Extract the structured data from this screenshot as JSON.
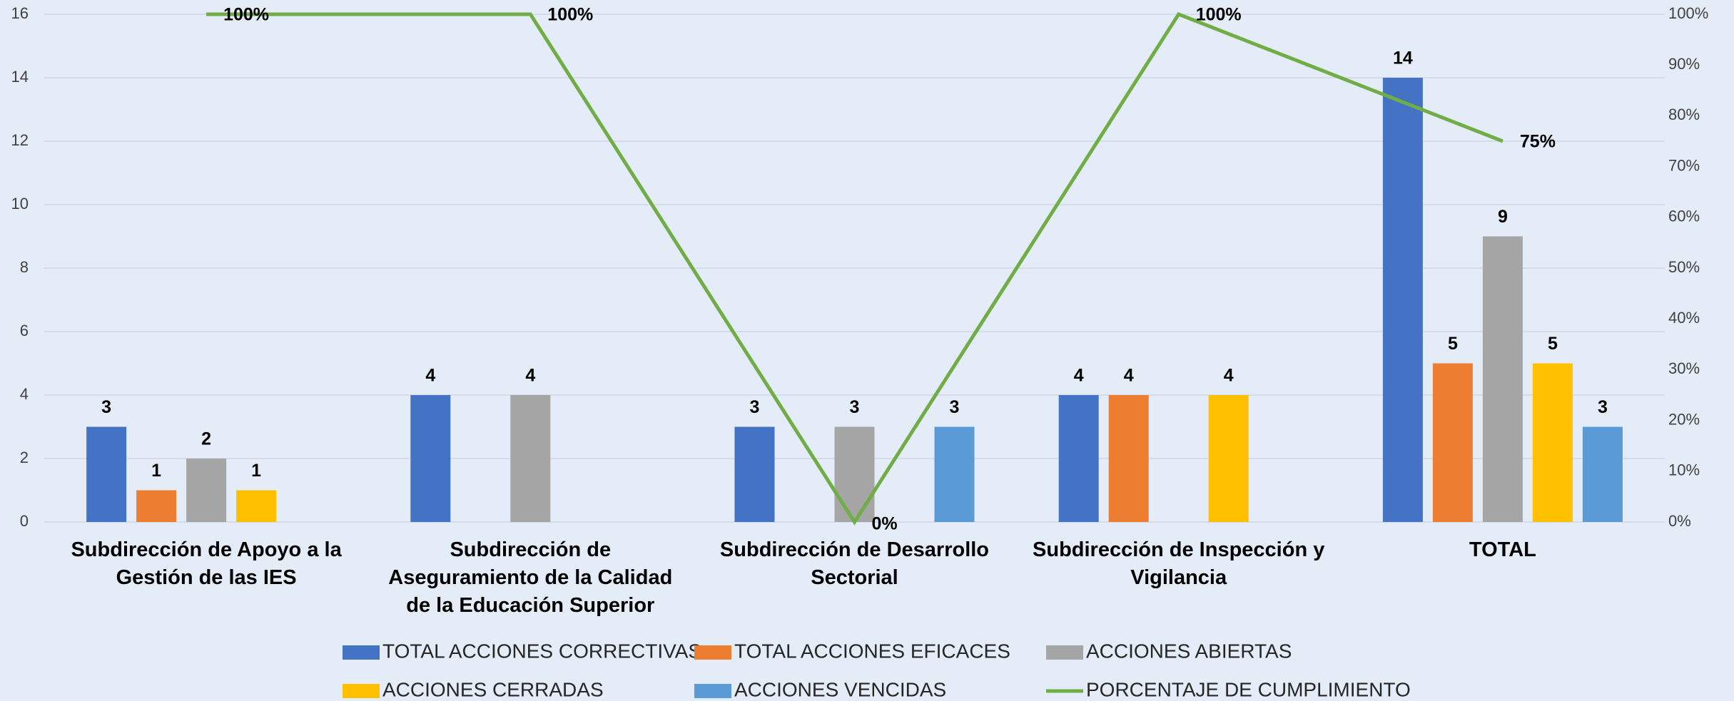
{
  "chart_data": {
    "type": "bar",
    "categories": [
      "Subdirección de Apoyo a la Gestión de las IES",
      "Subdirección de Aseguramiento de la Calidad de la Educación Superior",
      "Subdirección de Desarrollo Sectorial",
      "Subdirección de Inspección y Vigilancia",
      "TOTAL"
    ],
    "series": [
      {
        "name": "TOTAL ACCIONES CORRECTIVAS",
        "color": "#4472c4",
        "values": [
          3,
          4,
          3,
          4,
          14
        ]
      },
      {
        "name": "TOTAL ACCIONES EFICACES",
        "color": "#ed7d31",
        "values": [
          1,
          null,
          null,
          4,
          5
        ]
      },
      {
        "name": "ACCIONES ABIERTAS",
        "color": "#a5a5a5",
        "values": [
          2,
          4,
          3,
          null,
          9
        ]
      },
      {
        "name": "ACCIONES CERRADAS",
        "color": "#ffc000",
        "values": [
          1,
          null,
          null,
          4,
          5
        ]
      },
      {
        "name": "ACCIONES VENCIDAS",
        "color": "#5b9bd5",
        "values": [
          null,
          null,
          3,
          null,
          3
        ]
      },
      {
        "name": "PORCENTAJE DE CUMPLIMIENTO",
        "color": "#70ad47",
        "type": "line",
        "axis": "y2",
        "values": [
          100,
          100,
          0,
          100,
          75
        ],
        "value_labels": [
          "100%",
          "100%",
          "0%",
          "100%",
          "75%"
        ]
      }
    ],
    "ylim": [
      0,
      16
    ],
    "yticks": [
      0,
      2,
      4,
      6,
      8,
      10,
      12,
      14,
      16
    ],
    "y2lim": [
      0,
      100
    ],
    "y2ticks": [
      {
        "value": 0,
        "label": "0%"
      },
      {
        "value": 10,
        "label": "10%"
      },
      {
        "value": 20,
        "label": "20%"
      },
      {
        "value": 30,
        "label": "30%"
      },
      {
        "value": 40,
        "label": "40%"
      },
      {
        "value": 50,
        "label": "50%"
      },
      {
        "value": 60,
        "label": "60%"
      },
      {
        "value": 70,
        "label": "70%"
      },
      {
        "value": 80,
        "label": "80%"
      },
      {
        "value": 90,
        "label": "90%"
      },
      {
        "value": 100,
        "label": "100%"
      }
    ],
    "grid": true,
    "legend": "bottom"
  }
}
